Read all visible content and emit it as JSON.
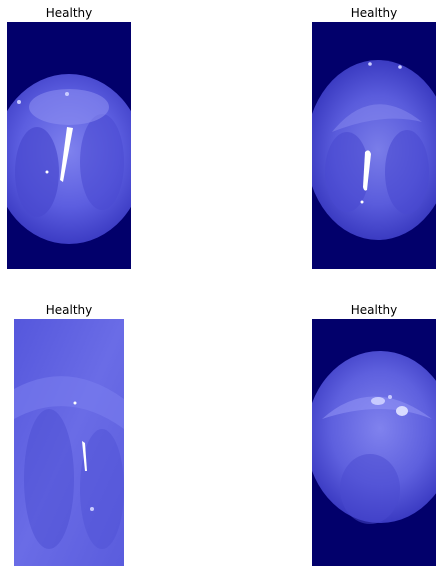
{
  "panels": [
    {
      "title": "Healthy"
    },
    {
      "title": "Healthy"
    },
    {
      "title": "Healthy"
    },
    {
      "title": "Healthy"
    }
  ],
  "colors": {
    "background": "#02006b",
    "tissue": "#5555dd",
    "tissue_light": "#8a8cf0",
    "highlight": "#ffffff"
  }
}
